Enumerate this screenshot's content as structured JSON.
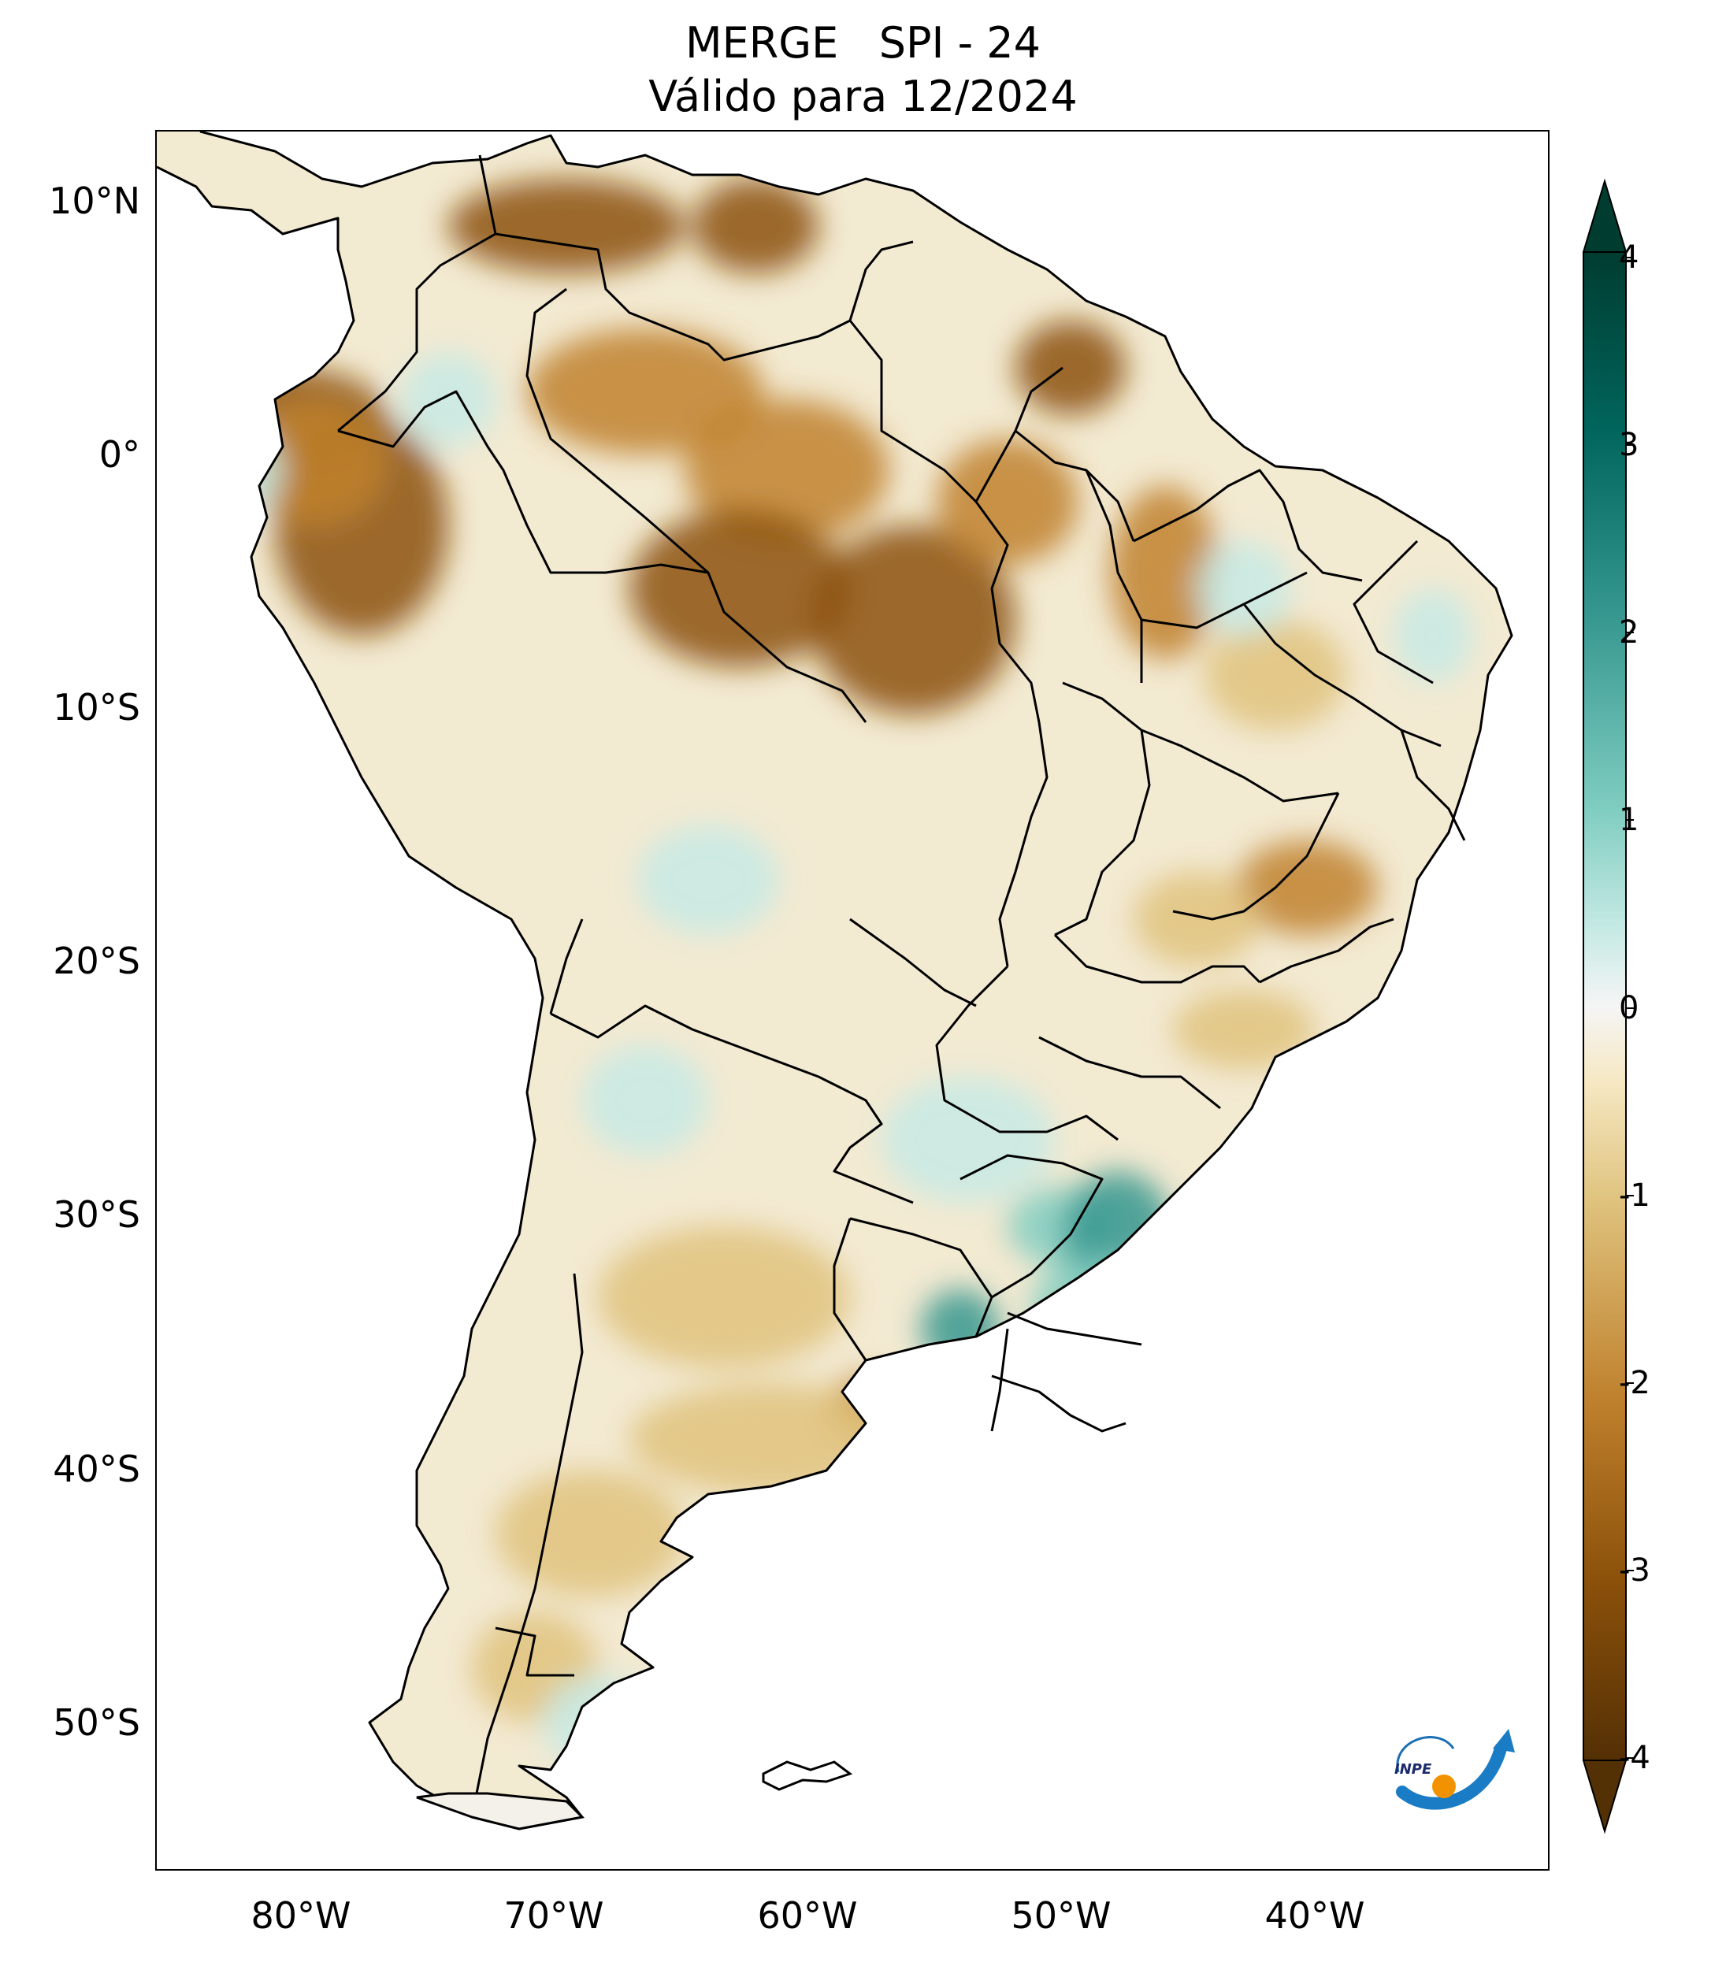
{
  "title": {
    "line1": "MERGE   SPI - 24",
    "line2": "Válido para 12/2024"
  },
  "axes": {
    "lat_ticks": [
      "10°N",
      "0°",
      "10°S",
      "20°S",
      "30°S",
      "40°S",
      "50°S"
    ],
    "lon_ticks": [
      "80°W",
      "70°W",
      "60°W",
      "50°W",
      "40°W"
    ]
  },
  "colorbar": {
    "ticks": [
      "4",
      "3",
      "2",
      "1",
      "0",
      "-1",
      "-2",
      "-3",
      "-4"
    ],
    "range": [
      -4,
      4
    ],
    "extend": "both",
    "colormap": "BrBG",
    "colors": {
      "dry_extreme": "#543005",
      "dry_strong": "#8c510a",
      "dry_moderate": "#bf812d",
      "dry_light": "#dfc27d",
      "dry_faint": "#f6e8c3",
      "neutral": "#ffffff",
      "wet_faint": "#c7eae5",
      "wet_light": "#80cdc1",
      "wet_moderate": "#35978f",
      "wet_strong": "#01665e",
      "wet_extreme": "#003c30"
    }
  },
  "logo": {
    "text": "INPE"
  }
}
